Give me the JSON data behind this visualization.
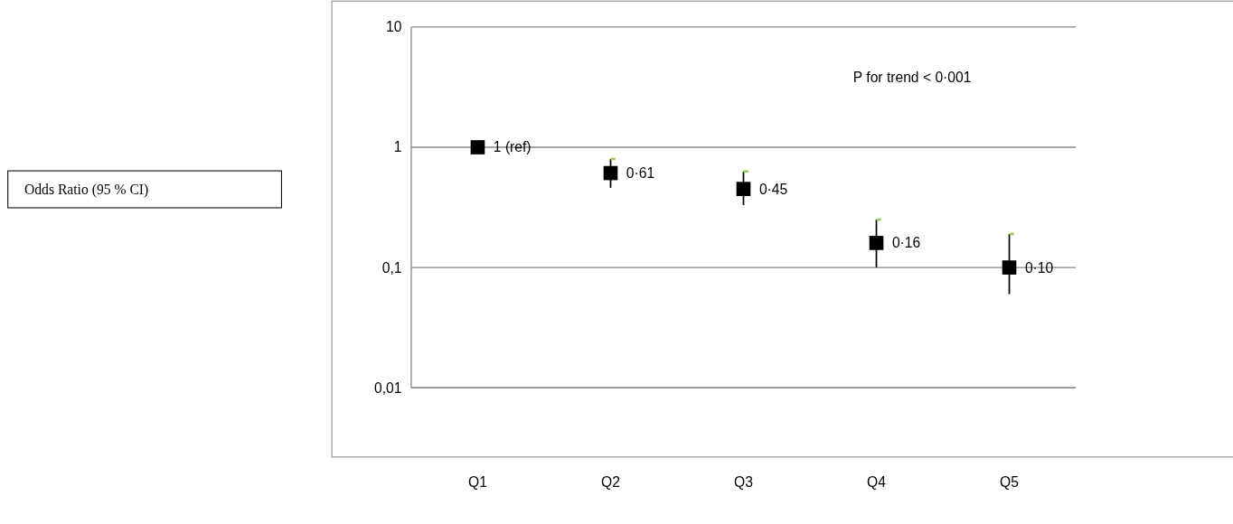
{
  "chart_data": {
    "type": "scatter",
    "categories": [
      "Q1",
      "Q2",
      "Q3",
      "Q4",
      "Q5"
    ],
    "series": [
      {
        "name": null,
        "color": "#000000",
        "values": [
          1,
          0.61,
          0.45,
          0.16,
          0.1
        ],
        "errors": [
          null,
          [
            0.46,
            0.8
          ],
          [
            0.33,
            0.63
          ],
          [
            0.1,
            0.25
          ],
          [
            0.06,
            0.19
          ]
        ],
        "value_labels": [
          "1 (ref)",
          "0·61",
          "0·45",
          "0·16",
          "0·10"
        ]
      }
    ],
    "log": true,
    "ylim": [
      0.01,
      10
    ],
    "yticks": [
      {
        "value": 0.01,
        "label": "0,01"
      },
      {
        "value": 0.1,
        "label": "0,1"
      },
      {
        "value": 1,
        "label": "1"
      },
      {
        "value": 10,
        "label": "10"
      }
    ],
    "grid": "y",
    "marker": "square",
    "annotations": [
      "Odds Ratio (95 % CI)",
      "P for trend < 0·001"
    ]
  }
}
